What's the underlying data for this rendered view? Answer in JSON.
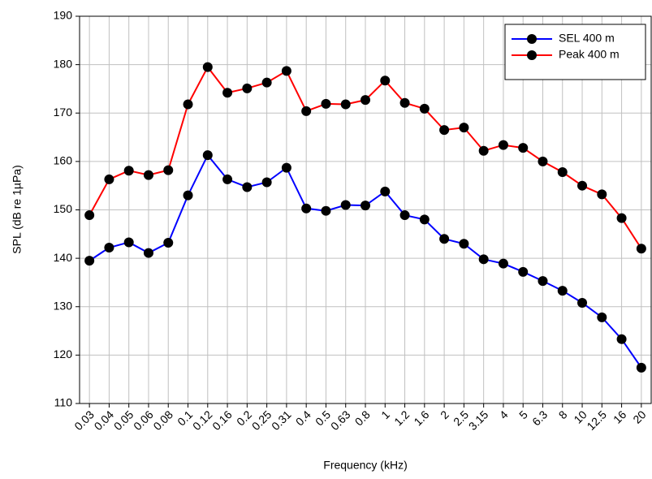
{
  "chart_data": {
    "type": "line",
    "xlabel": "Frequency (kHz)",
    "ylabel": "SPL (dB re 1µPa)",
    "categories": [
      "0.03",
      "0.04",
      "0.05",
      "0.06",
      "0.08",
      "0.1",
      "0.12",
      "0.16",
      "0.2",
      "0.25",
      "0.31",
      "0.4",
      "0.5",
      "0.63",
      "0.8",
      "1",
      "1.2",
      "1.6",
      "2",
      "2.5",
      "3.15",
      "4",
      "5",
      "6.3",
      "8",
      "10",
      "12.5",
      "16",
      "20"
    ],
    "series": [
      {
        "name": "SEL 400 m",
        "color": "#0000ff",
        "values": [
          139.5,
          142.2,
          143.3,
          141.1,
          143.2,
          153,
          161.3,
          156.3,
          154.7,
          155.7,
          158.7,
          150.3,
          149.8,
          151,
          150.9,
          153.8,
          148.9,
          148,
          144,
          143,
          139.8,
          138.9,
          137.2,
          135.3,
          133.3,
          130.8,
          127.8,
          123.3,
          117.4
        ]
      },
      {
        "name": "Peak 400 m",
        "color": "#ff0000",
        "values": [
          148.9,
          156.3,
          158.1,
          157.2,
          158.2,
          171.8,
          179.5,
          174.2,
          175.1,
          176.3,
          178.7,
          170.4,
          171.9,
          171.8,
          172.7,
          176.7,
          172.1,
          170.9,
          166.5,
          167,
          162.2,
          163.4,
          162.8,
          160,
          157.8,
          155,
          153.2,
          148.3,
          142
        ]
      }
    ],
    "marker_color": "#000000",
    "ylim": [
      110,
      190
    ],
    "yticks": [
      110,
      120,
      130,
      140,
      150,
      160,
      170,
      180,
      190
    ],
    "grid": true,
    "legend": "upper right"
  }
}
